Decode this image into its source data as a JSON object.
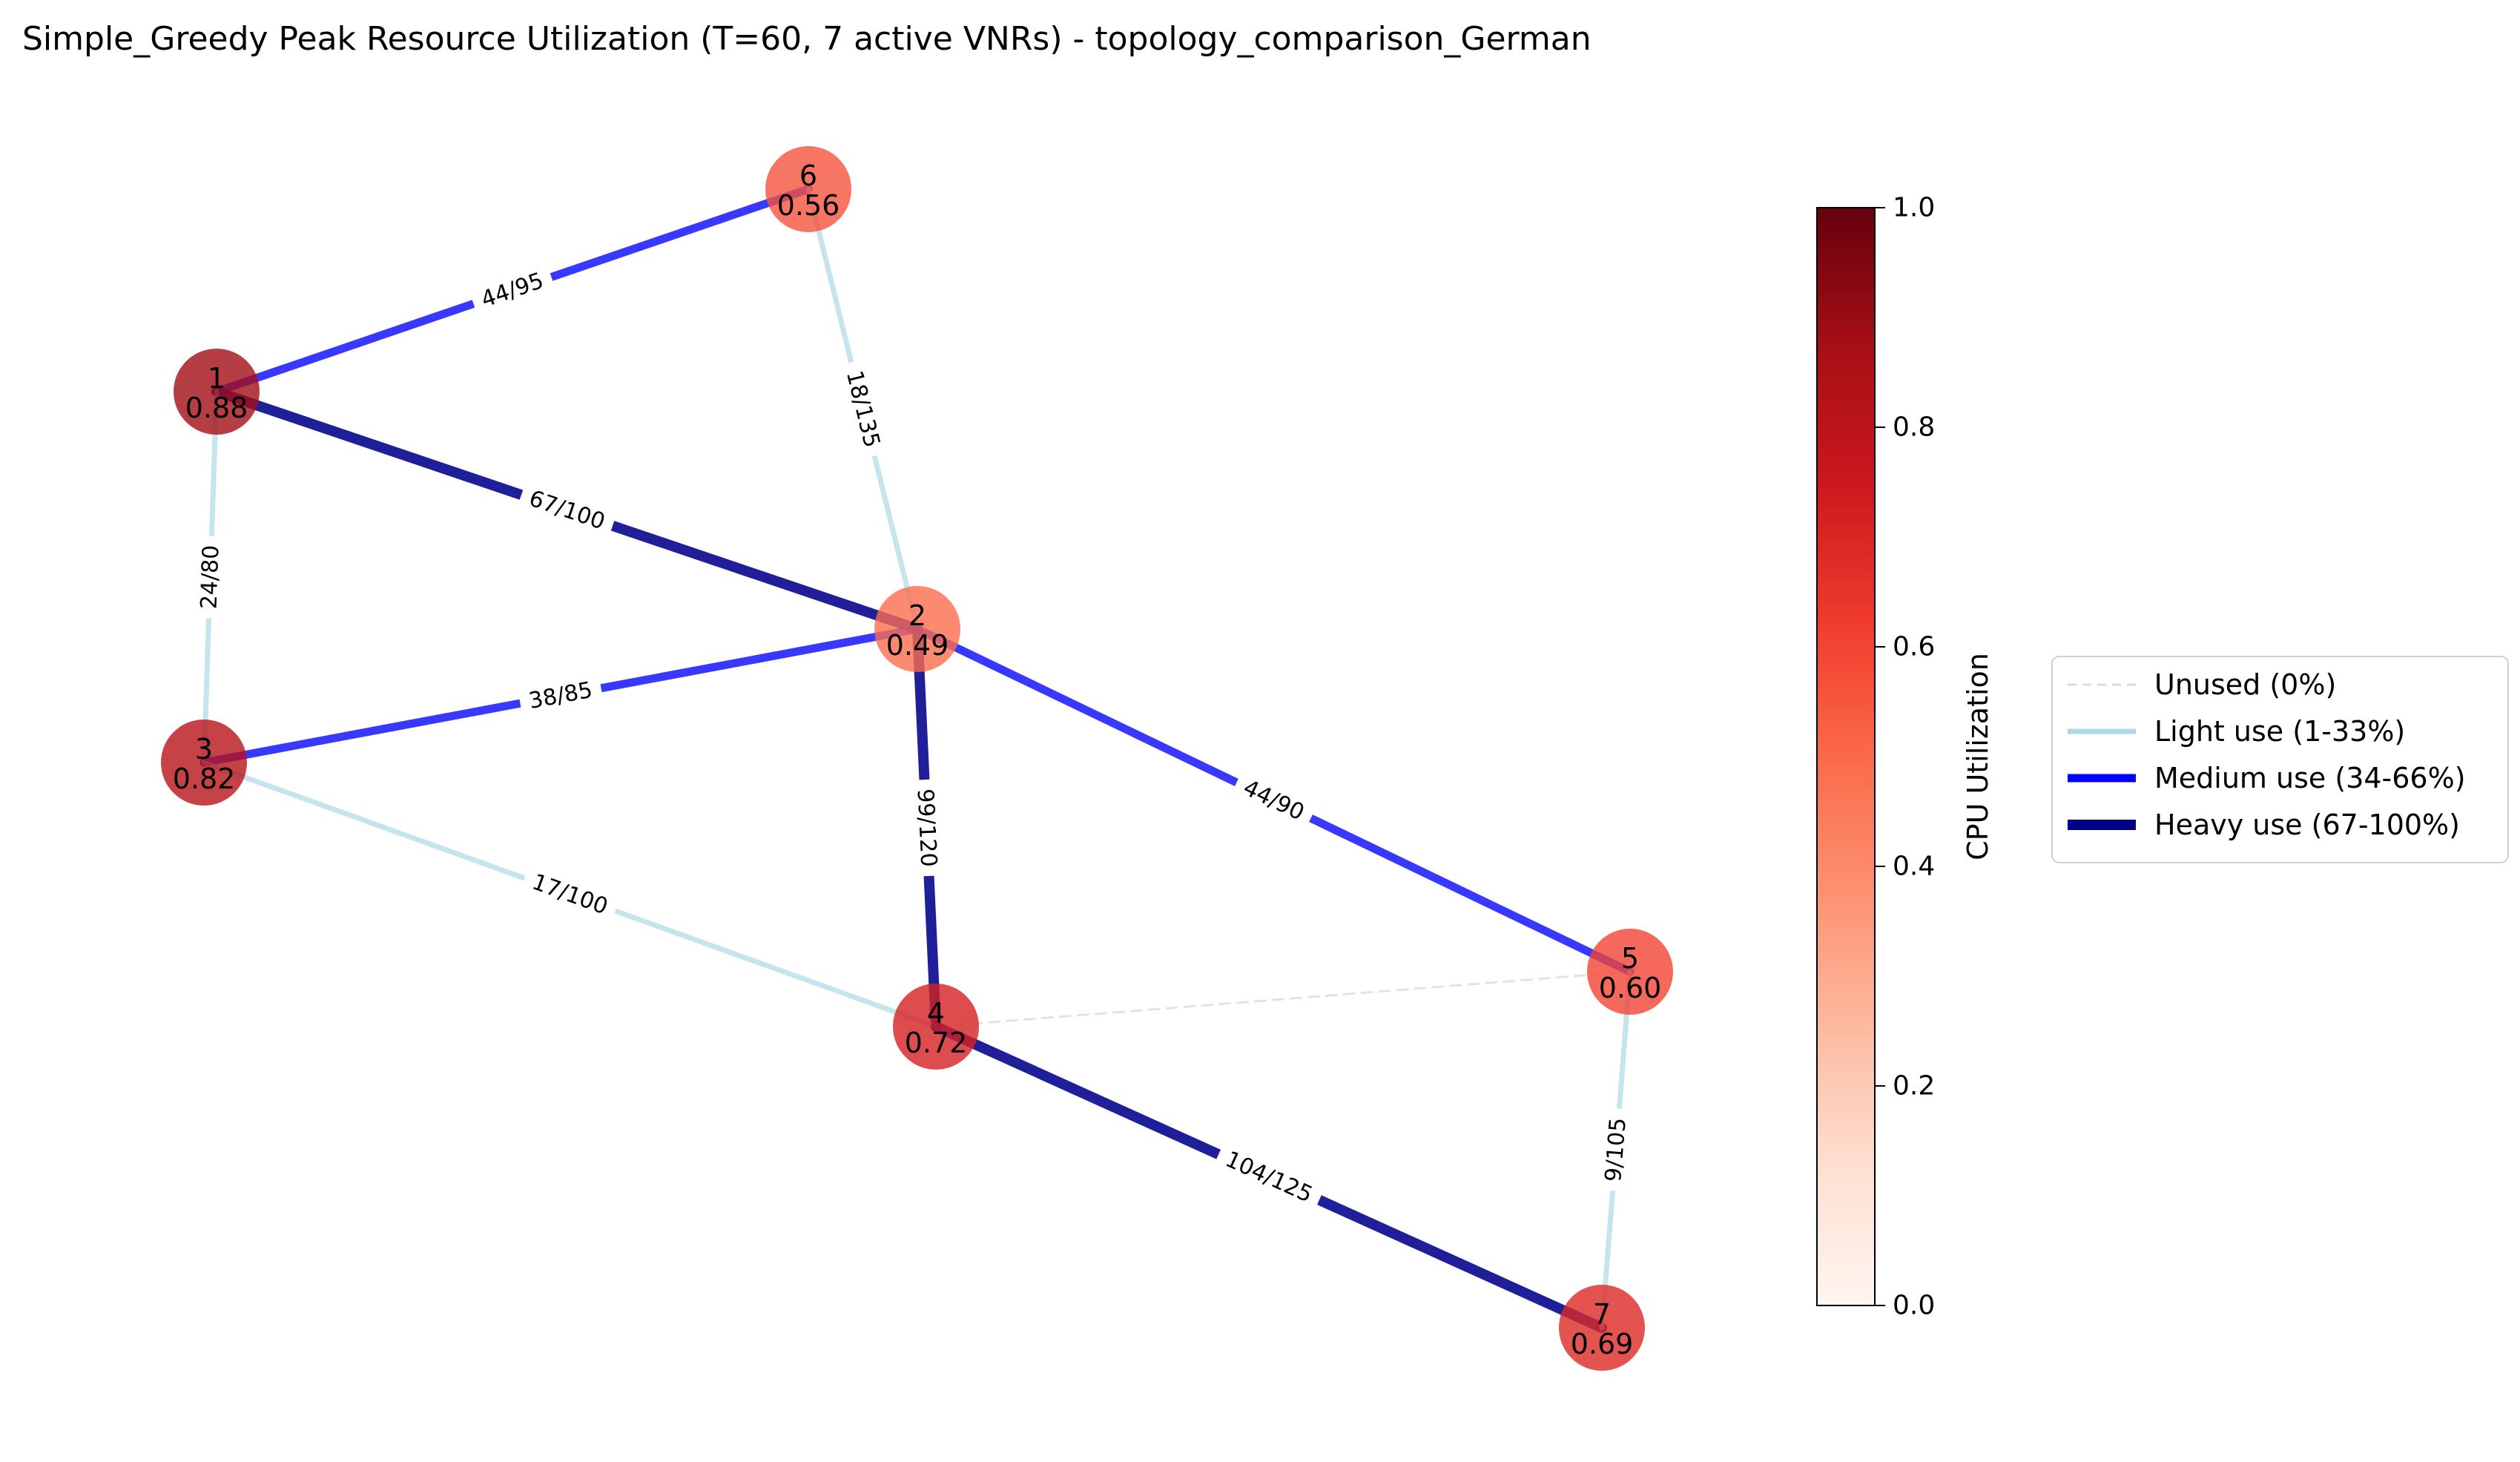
{
  "title": "Simple_Greedy Peak Resource Utilization (T=60, 7 active VNRs) - topology_comparison_German",
  "colors": {
    "unused": "#cccccc",
    "light": "#add8e6",
    "medium": "#0000ff",
    "heavy": "#00008b"
  },
  "nodes": [
    {
      "id": "1",
      "value": "0.88",
      "util": 0.88
    },
    {
      "id": "2",
      "value": "0.49",
      "util": 0.49
    },
    {
      "id": "3",
      "value": "0.82",
      "util": 0.82
    },
    {
      "id": "4",
      "value": "0.72",
      "util": 0.72
    },
    {
      "id": "5",
      "value": "0.60",
      "util": 0.6
    },
    {
      "id": "6",
      "value": "0.56",
      "util": 0.56
    },
    {
      "id": "7",
      "value": "0.69",
      "util": 0.69
    }
  ],
  "edges": [
    {
      "source": "1",
      "target": "6",
      "label": "44/95",
      "category": "medium"
    },
    {
      "source": "1",
      "target": "2",
      "label": "67/100",
      "category": "heavy"
    },
    {
      "source": "1",
      "target": "3",
      "label": "24/80",
      "category": "light"
    },
    {
      "source": "6",
      "target": "2",
      "label": "18/135",
      "category": "light"
    },
    {
      "source": "3",
      "target": "2",
      "label": "38/85",
      "category": "medium"
    },
    {
      "source": "2",
      "target": "4",
      "label": "99/120",
      "category": "heavy"
    },
    {
      "source": "2",
      "target": "5",
      "label": "44/90",
      "category": "medium"
    },
    {
      "source": "3",
      "target": "4",
      "label": "17/100",
      "category": "light"
    },
    {
      "source": "4",
      "target": "5",
      "label": "",
      "category": "unused"
    },
    {
      "source": "4",
      "target": "7",
      "label": "104/125",
      "category": "heavy"
    },
    {
      "source": "5",
      "target": "7",
      "label": "9/105",
      "category": "light"
    }
  ],
  "colorbar": {
    "label": "CPU Utilization",
    "min": 0.0,
    "max": 1.0,
    "ticks": [
      "0.0",
      "0.2",
      "0.4",
      "0.6",
      "0.8",
      "1.0"
    ]
  },
  "legend": [
    {
      "label": "Unused (0%)",
      "category": "unused"
    },
    {
      "label": "Light use (1-33%)",
      "category": "light"
    },
    {
      "label": "Medium use (34-66%)",
      "category": "medium"
    },
    {
      "label": "Heavy use (67-100%)",
      "category": "heavy"
    }
  ]
}
